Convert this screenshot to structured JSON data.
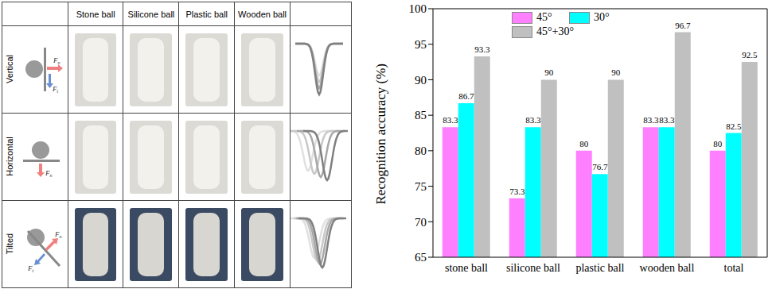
{
  "table": {
    "columns": [
      "Stone ball",
      "Silicone ball",
      "Plastic ball",
      "Wooden ball"
    ],
    "rows": [
      {
        "label": "Vertical",
        "forces": [
          "Fn",
          "Ft"
        ]
      },
      {
        "label": "Horizontal",
        "forces": [
          "Fn"
        ]
      },
      {
        "label": "Tilted",
        "forces": [
          "Fn",
          "Ft"
        ]
      }
    ]
  },
  "chart_data": {
    "type": "bar",
    "categories": [
      "stone ball",
      "silicone ball",
      "plastic ball",
      "wooden ball",
      "total"
    ],
    "series": [
      {
        "name": "45°",
        "color": "#ff80ff",
        "values": [
          83.3,
          73.3,
          80,
          83.3,
          80
        ]
      },
      {
        "name": "30°",
        "color": "#00ffff",
        "values": [
          86.7,
          83.3,
          76.7,
          83.3,
          82.5
        ]
      },
      {
        "name": "45°+30°",
        "color": "#c0c0c0",
        "values": [
          93.3,
          90,
          90,
          96.7,
          92.5
        ]
      }
    ],
    "y_label": "Recognition accuracy (%)",
    "ylim": [
      65,
      100
    ],
    "yticks": [
      65,
      70,
      75,
      80,
      85,
      90,
      95,
      100
    ],
    "data_labels": true,
    "legend": "top right",
    "grid": false
  }
}
